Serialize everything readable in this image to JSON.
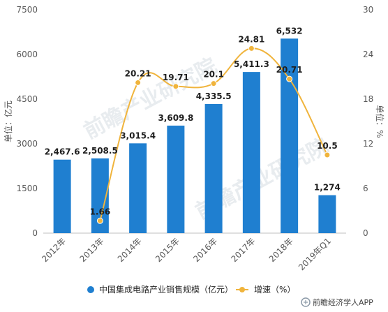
{
  "chart_data": {
    "type": "bar",
    "categories": [
      "2012年",
      "2013年",
      "2014年",
      "2015年",
      "2016年",
      "2017年",
      "2018年",
      "2019年Q1"
    ],
    "series": [
      {
        "name": "中国集成电路产业销售规模（亿元）",
        "type": "bar",
        "axis": "left",
        "color": "#1f7fd0",
        "values": [
          2467.6,
          2508.5,
          3015.4,
          3609.8,
          4335.5,
          5411.3,
          6532,
          1274
        ],
        "labels": [
          "2,467.6",
          "2,508.5",
          "3,015.4",
          "3,609.8",
          "4,335.5",
          "5,411.3",
          "6,532",
          "1,274"
        ]
      },
      {
        "name": "增速（%）",
        "type": "line",
        "axis": "right",
        "color": "#f0b43c",
        "values": [
          null,
          1.66,
          20.21,
          19.71,
          20.1,
          24.81,
          20.71,
          10.5
        ],
        "labels": [
          "",
          "1.66",
          "20.21",
          "19.71",
          "20.1",
          "24.81",
          "20.71",
          "10.5"
        ]
      }
    ],
    "ylabel": "单位：亿元",
    "y2label": "单位：%",
    "ylim": [
      0,
      7500
    ],
    "y2lim": [
      0,
      30
    ],
    "yticks": [
      "0",
      "1500",
      "3000",
      "4500",
      "6000",
      "7500"
    ],
    "y2ticks": [
      "0",
      "6",
      "12",
      "18",
      "24",
      "30"
    ],
    "grid": false,
    "legend": "bottom"
  },
  "watermark": "前瞻产业研究院",
  "footer": "前瞻经济学人APP"
}
